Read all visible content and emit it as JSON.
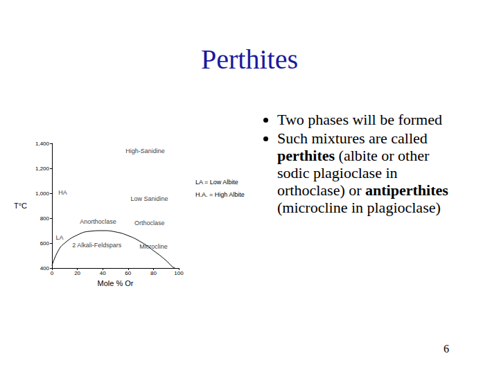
{
  "title": "Perthites",
  "bullets": [
    [
      {
        "text": "Two phases will be formed"
      }
    ],
    [
      {
        "text": "Such mixtures are called "
      },
      {
        "text": "perthites",
        "bold": true
      },
      {
        "text": " (albite or other sodic plagioclase in orthoclase) or "
      },
      {
        "text": "antiperthites",
        "bold": true
      },
      {
        "text": " (microcline in plagioclase)"
      }
    ]
  ],
  "page_number": 6,
  "chart_data": {
    "type": "line",
    "x_label": "Mole % Or",
    "y_label": "T°C",
    "x": [
      0,
      5,
      10,
      20,
      30,
      40,
      50,
      60,
      70,
      80,
      90,
      95,
      97
    ],
    "values": [
      420,
      540,
      600,
      665,
      695,
      700,
      690,
      660,
      610,
      540,
      460,
      410,
      400
    ],
    "color": "#000000",
    "xlim": [
      0,
      100
    ],
    "xticks": [
      0,
      20,
      40,
      60,
      80,
      100
    ],
    "ylim": [
      400,
      1400
    ],
    "yticks": [
      400,
      600,
      800,
      1000,
      1200,
      1400
    ],
    "grid": false,
    "annotations": [
      {
        "text": "High-Sanidine",
        "x": 58,
        "y": 1340
      },
      {
        "text": "HA",
        "x": 5,
        "y": 1005
      },
      {
        "text": "Low Sanidine",
        "x": 62,
        "y": 955
      },
      {
        "text": "Anorthoclase",
        "x": 22,
        "y": 775
      },
      {
        "text": "Orthoclase",
        "x": 65,
        "y": 760
      },
      {
        "text": "LA",
        "x": 3,
        "y": 645
      },
      {
        "text": "2 Alkali-Feldspars",
        "x": 16,
        "y": 585
      },
      {
        "text": "Microcline",
        "x": 69,
        "y": 570
      }
    ],
    "key": [
      "LA = Low Albite",
      "H.A. = High Albite"
    ]
  }
}
